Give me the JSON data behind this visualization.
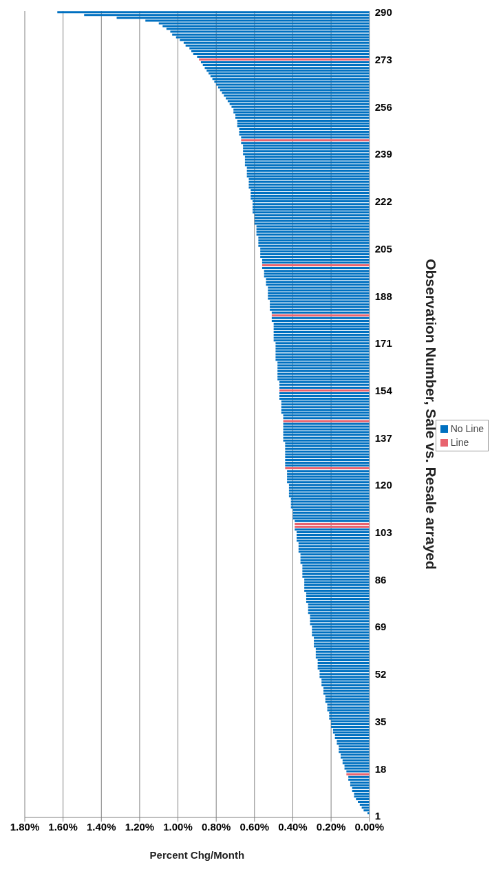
{
  "chart_data": {
    "type": "bar",
    "orientation": "horizontal",
    "stacked": true,
    "xlabel": "Percent Chg/Month",
    "ylabel": "Observation Number, Sale vs. Resale arrayed",
    "categories": [
      "290",
      null,
      null,
      null,
      null,
      null,
      null,
      null,
      null,
      null,
      null,
      null,
      null,
      null,
      null,
      null,
      null,
      "273",
      null,
      null,
      null,
      null,
      null,
      null,
      null,
      null,
      null,
      null,
      null,
      null,
      null,
      null,
      null,
      null,
      "256",
      null,
      null,
      null,
      null,
      null,
      null,
      null,
      null,
      null,
      null,
      null,
      null,
      null,
      null,
      null,
      null,
      "239",
      null,
      null,
      null,
      null,
      null,
      null,
      null,
      null,
      null,
      null,
      null,
      null,
      null,
      null,
      null,
      null,
      "222",
      null,
      null,
      null,
      null,
      null,
      null,
      null,
      null,
      null,
      null,
      null,
      null,
      null,
      null,
      null,
      null,
      "205",
      null,
      null,
      null,
      null,
      null,
      null,
      null,
      null,
      null,
      null,
      null,
      null,
      null,
      null,
      null,
      null,
      "188",
      null,
      null,
      null,
      null,
      null,
      null,
      null,
      null,
      null,
      null,
      null,
      null,
      null,
      null,
      null,
      null,
      "171",
      null,
      null,
      null,
      null,
      null,
      null,
      null,
      null,
      null,
      null,
      null,
      null,
      null,
      null,
      null,
      null,
      "154",
      null,
      null,
      null,
      null,
      null,
      null,
      null,
      null,
      null,
      null,
      null,
      null,
      null,
      null,
      null,
      null,
      "137",
      null,
      null,
      null,
      null,
      null,
      null,
      null,
      null,
      null,
      null,
      null,
      null,
      null,
      null,
      null,
      null,
      "120",
      null,
      null,
      null,
      null,
      null,
      null,
      null,
      null,
      null,
      null,
      null,
      null,
      null,
      null,
      null,
      null,
      "103",
      null,
      null,
      null,
      null,
      null,
      null,
      null,
      null,
      null,
      null,
      null,
      null,
      null,
      null,
      null,
      null,
      "86",
      null,
      null,
      null,
      null,
      null,
      null,
      null,
      null,
      null,
      null,
      null,
      null,
      null,
      null,
      null,
      null,
      "69",
      null,
      null,
      null,
      null,
      null,
      null,
      null,
      null,
      null,
      null,
      null,
      null,
      null,
      null,
      null,
      null,
      "52",
      null,
      null,
      null,
      null,
      null,
      null,
      null,
      null,
      null,
      null,
      null,
      null,
      null,
      null,
      null,
      null,
      "35",
      null,
      null,
      null,
      null,
      null,
      null,
      null,
      null,
      null,
      null,
      null,
      null,
      null,
      null,
      null,
      null,
      "18",
      null,
      null,
      null,
      null,
      null,
      null,
      null,
      null,
      null,
      null,
      null,
      null,
      null,
      null,
      null,
      null,
      "1"
    ],
    "series": [
      {
        "name": "No Line",
        "color": "#0070c0",
        "values": [
          1.63,
          1.49,
          1.32,
          1.17,
          1.1,
          1.08,
          1.06,
          1.04,
          1.03,
          1.01,
          0.99,
          0.97,
          0.96,
          0.94,
          0.93,
          0.92,
          0.9,
          null,
          0.88,
          0.87,
          0.86,
          0.85,
          0.84,
          0.83,
          0.82,
          0.81,
          0.8,
          0.79,
          0.78,
          0.77,
          0.76,
          0.75,
          0.74,
          0.73,
          0.72,
          0.71,
          0.71,
          0.7,
          0.7,
          0.69,
          0.69,
          0.69,
          0.68,
          0.68,
          0.68,
          0.67,
          null,
          0.67,
          0.66,
          0.66,
          0.66,
          0.66,
          0.65,
          0.65,
          0.65,
          0.65,
          0.64,
          0.64,
          0.64,
          0.64,
          0.63,
          0.63,
          0.63,
          0.63,
          0.62,
          0.62,
          0.62,
          0.62,
          0.61,
          0.61,
          0.61,
          0.61,
          0.61,
          0.6,
          0.6,
          0.6,
          0.6,
          0.59,
          0.59,
          0.59,
          0.59,
          0.58,
          0.58,
          0.58,
          0.58,
          0.57,
          0.57,
          0.57,
          0.57,
          0.56,
          0.56,
          null,
          0.56,
          0.55,
          0.55,
          0.55,
          0.54,
          0.54,
          0.54,
          0.53,
          0.53,
          0.53,
          0.53,
          0.53,
          0.52,
          0.52,
          0.52,
          0.52,
          0.51,
          null,
          0.51,
          0.51,
          0.5,
          0.5,
          0.5,
          0.5,
          0.5,
          0.5,
          0.5,
          0.49,
          0.49,
          0.49,
          0.49,
          0.49,
          0.49,
          0.49,
          0.48,
          0.48,
          0.48,
          0.48,
          0.48,
          0.48,
          0.48,
          0.47,
          0.47,
          0.47,
          null,
          0.47,
          0.47,
          0.47,
          0.46,
          0.46,
          0.46,
          0.46,
          0.46,
          0.45,
          0.45,
          null,
          0.45,
          0.45,
          0.45,
          0.45,
          0.45,
          0.45,
          0.45,
          0.44,
          0.44,
          0.44,
          0.44,
          0.44,
          0.44,
          0.44,
          0.44,
          0.44,
          null,
          0.43,
          0.43,
          0.43,
          0.43,
          0.43,
          0.42,
          0.42,
          0.42,
          0.42,
          0.42,
          0.41,
          0.41,
          0.41,
          0.41,
          0.4,
          0.4,
          0.4,
          0.4,
          0.39,
          null,
          null,
          0.39,
          0.38,
          0.38,
          0.38,
          0.38,
          0.37,
          0.37,
          0.37,
          0.37,
          0.36,
          0.36,
          0.36,
          0.36,
          0.35,
          0.35,
          0.35,
          0.35,
          0.35,
          0.34,
          0.34,
          0.34,
          0.34,
          0.34,
          0.33,
          0.33,
          0.33,
          0.33,
          0.32,
          0.32,
          0.32,
          0.32,
          0.31,
          0.31,
          0.31,
          0.31,
          0.3,
          0.3,
          0.3,
          0.3,
          0.29,
          0.29,
          0.29,
          0.29,
          0.28,
          0.28,
          0.28,
          0.28,
          0.27,
          0.27,
          0.27,
          0.27,
          0.26,
          0.26,
          0.26,
          0.25,
          0.25,
          0.25,
          0.24,
          0.24,
          0.24,
          0.23,
          0.23,
          0.23,
          0.22,
          0.22,
          0.22,
          0.21,
          0.21,
          0.21,
          0.2,
          0.2,
          0.2,
          0.19,
          0.19,
          0.18,
          0.18,
          0.17,
          0.17,
          0.16,
          0.16,
          0.16,
          0.15,
          0.15,
          0.14,
          0.14,
          0.13,
          0.13,
          0.12,
          null,
          0.11,
          0.11,
          0.1,
          0.1,
          0.09,
          0.09,
          0.08,
          0.08,
          0.07,
          0.06,
          0.05,
          0.04,
          0.03,
          0.01,
          0
        ]
      },
      {
        "name": "Line",
        "color": "#e8636e",
        "values": [
          null,
          null,
          null,
          null,
          null,
          null,
          null,
          null,
          null,
          null,
          null,
          null,
          null,
          null,
          null,
          null,
          null,
          0.89,
          null,
          null,
          null,
          null,
          null,
          null,
          null,
          null,
          null,
          null,
          null,
          null,
          null,
          null,
          null,
          null,
          null,
          null,
          null,
          null,
          null,
          null,
          null,
          null,
          null,
          null,
          null,
          null,
          0.67,
          null,
          null,
          null,
          null,
          null,
          null,
          null,
          null,
          null,
          null,
          null,
          null,
          null,
          null,
          null,
          null,
          null,
          null,
          null,
          null,
          null,
          null,
          null,
          null,
          null,
          null,
          null,
          null,
          null,
          null,
          null,
          null,
          null,
          null,
          null,
          null,
          null,
          null,
          null,
          null,
          null,
          null,
          null,
          null,
          0.56,
          null,
          null,
          null,
          null,
          null,
          null,
          null,
          null,
          null,
          null,
          null,
          null,
          null,
          null,
          null,
          null,
          null,
          0.51,
          null,
          null,
          null,
          null,
          null,
          null,
          null,
          null,
          null,
          null,
          null,
          null,
          null,
          null,
          null,
          null,
          null,
          null,
          null,
          null,
          null,
          null,
          null,
          null,
          null,
          null,
          0.47,
          null,
          null,
          null,
          null,
          null,
          null,
          null,
          null,
          null,
          null,
          0.45,
          null,
          null,
          null,
          null,
          null,
          null,
          null,
          null,
          null,
          null,
          null,
          null,
          null,
          null,
          null,
          null,
          0.44,
          null,
          null,
          null,
          null,
          null,
          null,
          null,
          null,
          null,
          null,
          null,
          null,
          null,
          null,
          null,
          null,
          null,
          null,
          null,
          0.39,
          0.39,
          null,
          null,
          null,
          null,
          null,
          null,
          null,
          null,
          null,
          null,
          null,
          null,
          null,
          null,
          null,
          null,
          null,
          null,
          null,
          null,
          null,
          null,
          null,
          null,
          null,
          null,
          null,
          null,
          null,
          null,
          null,
          null,
          null,
          null,
          null,
          null,
          null,
          null,
          null,
          null,
          null,
          null,
          null,
          null,
          null,
          null,
          null,
          null,
          null,
          null,
          null,
          null,
          null,
          null,
          null,
          null,
          null,
          null,
          null,
          null,
          null,
          null,
          null,
          null,
          null,
          null,
          null,
          null,
          null,
          null,
          null,
          null,
          null,
          null,
          null,
          null,
          null,
          null,
          null,
          null,
          null,
          null,
          null,
          null,
          null,
          null,
          null,
          null,
          0.12,
          null,
          null,
          null,
          null,
          null,
          null,
          null,
          null,
          null,
          null,
          null,
          null,
          null,
          null,
          null
        ]
      }
    ],
    "xlim": [
      1.8,
      0
    ],
    "xticks": [
      {
        "value": 1.8,
        "label": "1.80%"
      },
      {
        "value": 1.6,
        "label": "1.60%"
      },
      {
        "value": 1.4,
        "label": "1.40%"
      },
      {
        "value": 1.2,
        "label": "1.20%"
      },
      {
        "value": 1.0,
        "label": "1.00%"
      },
      {
        "value": 0.8,
        "label": "0.80%"
      },
      {
        "value": 0.6,
        "label": "0.60%"
      },
      {
        "value": 0.4,
        "label": "0.40%"
      },
      {
        "value": 0.2,
        "label": "0.20%"
      },
      {
        "value": 0,
        "label": "0.00%"
      }
    ],
    "grid": "x",
    "legend": "right"
  }
}
